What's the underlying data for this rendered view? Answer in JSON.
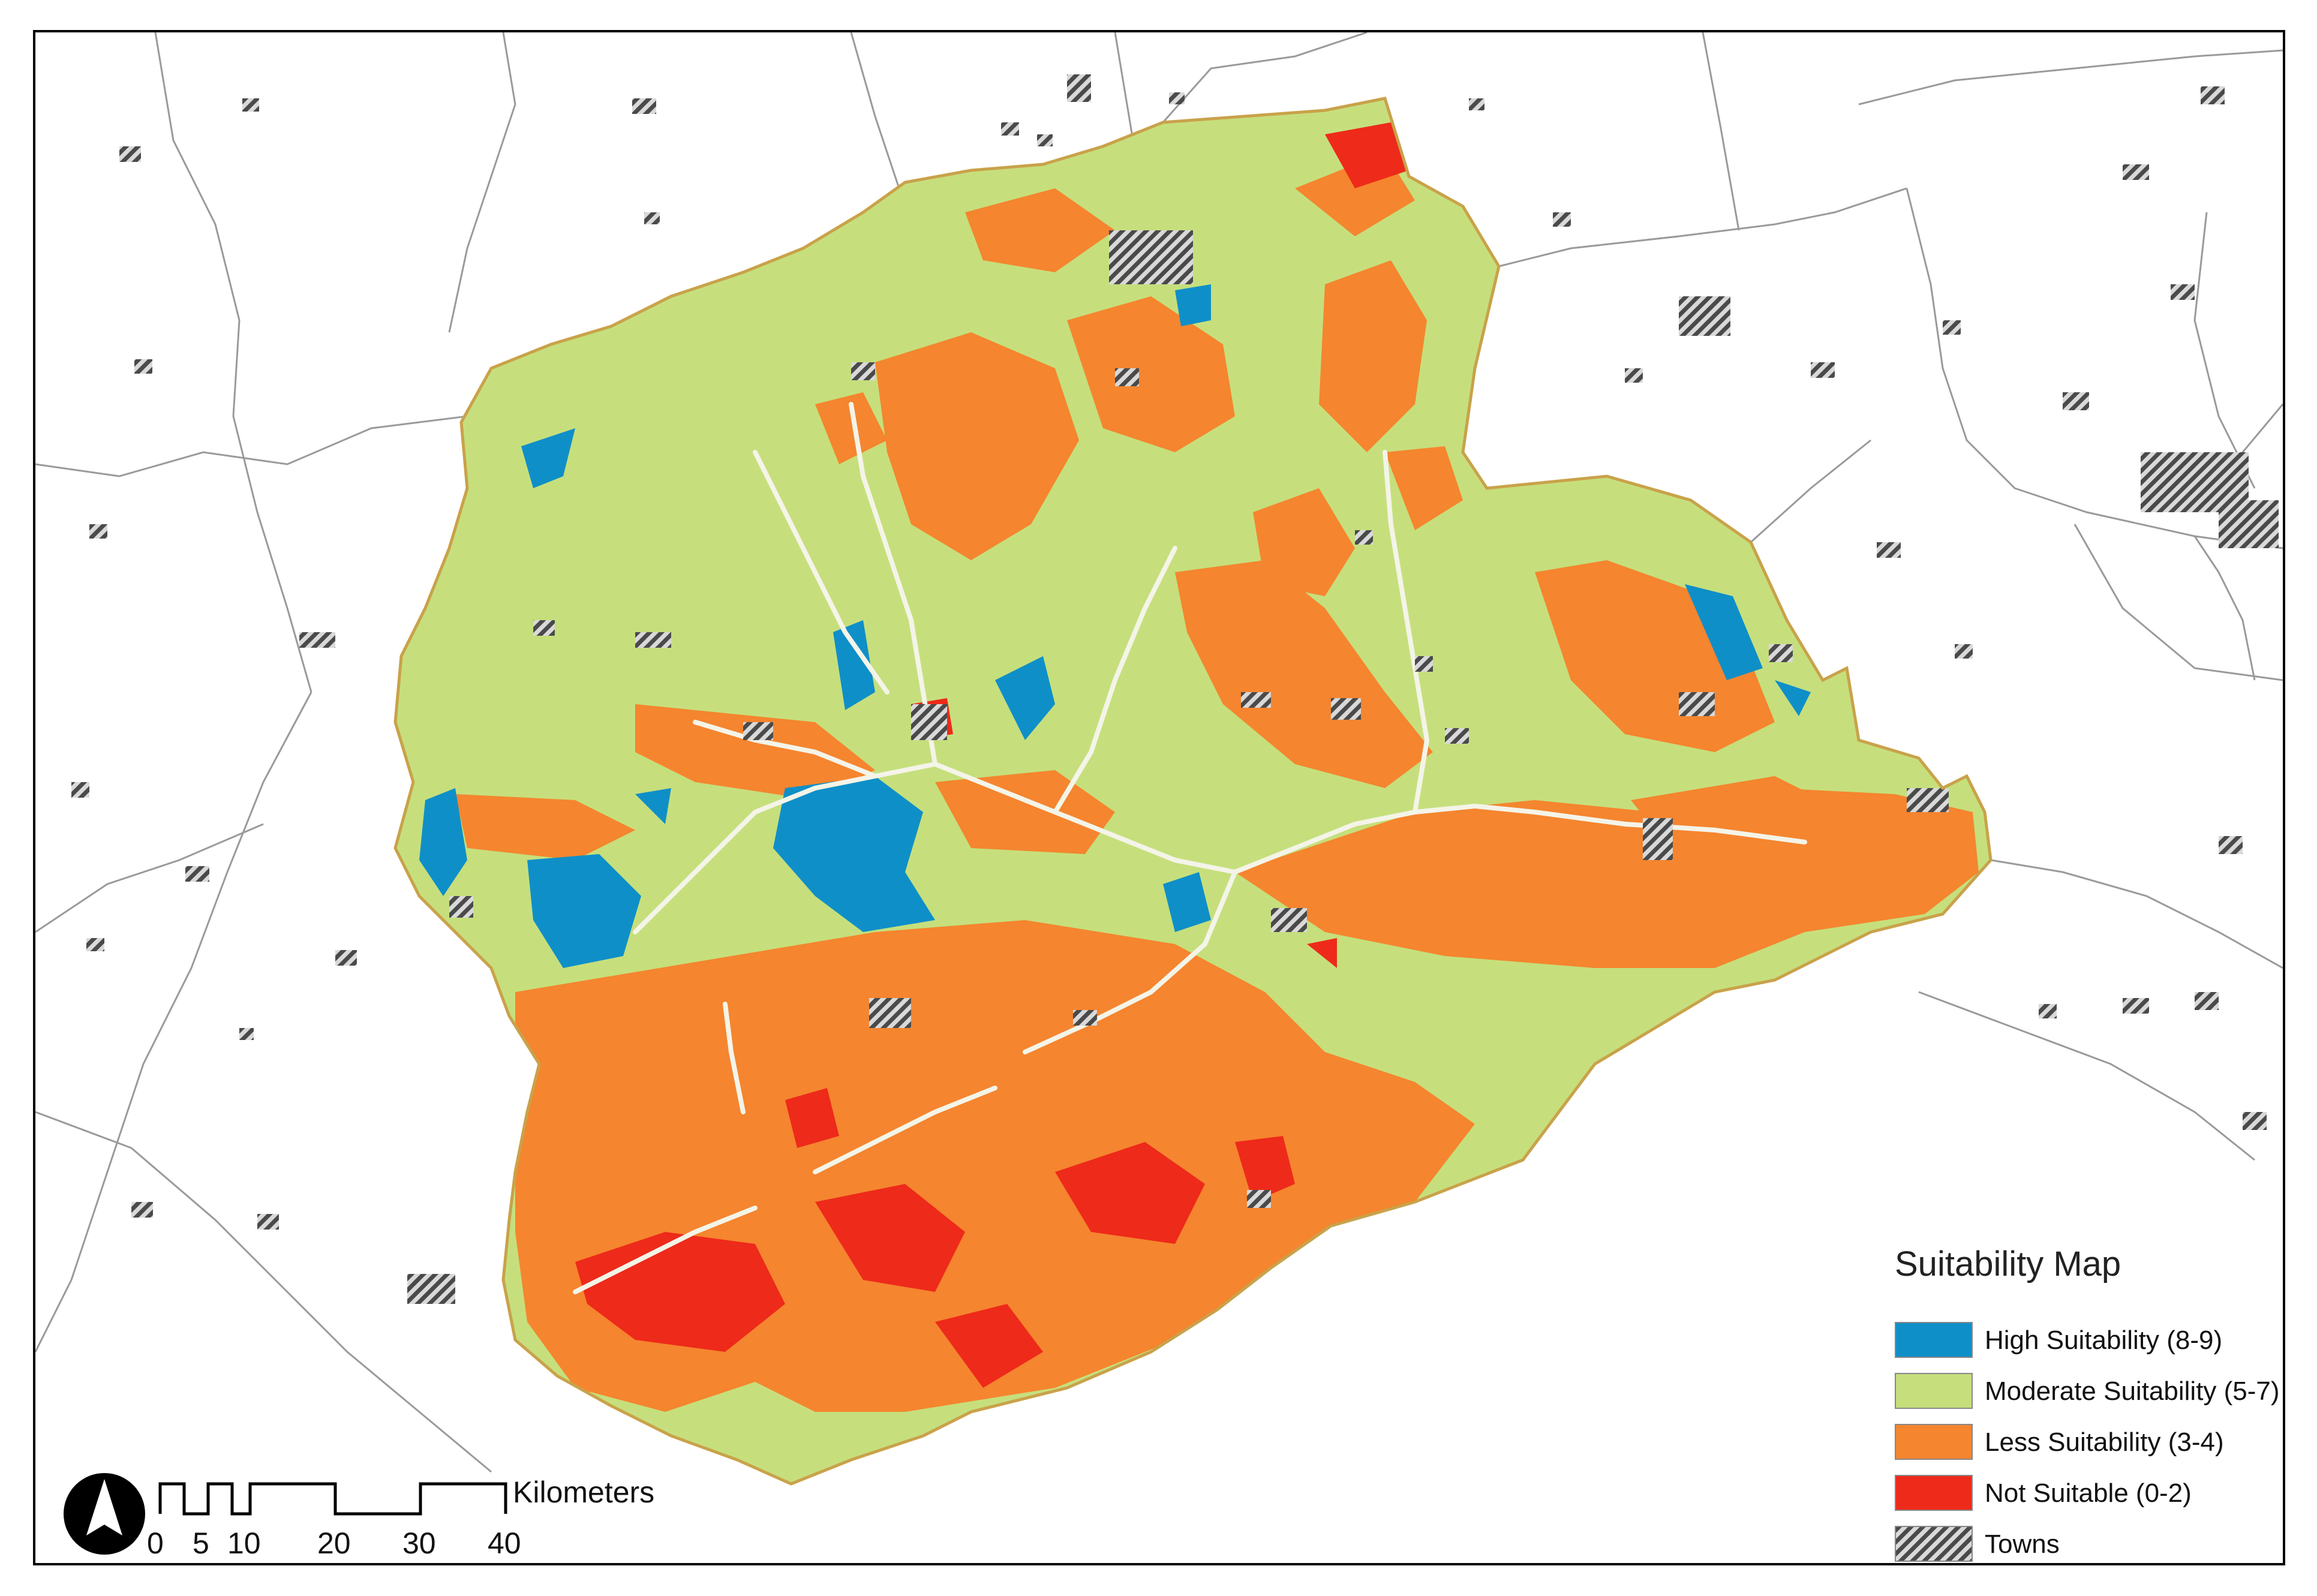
{
  "legend": {
    "title": "Suitability Map",
    "items": [
      {
        "label": "High Suitability (8-9)",
        "color": "#0f8fc8"
      },
      {
        "label": "Moderate Suitability (5-7)",
        "color": "#c6df7c"
      },
      {
        "label": "Less Suitability (3-4)",
        "color": "#f5852f"
      },
      {
        "label": "Not Suitable (0-2)",
        "color": "#ee2a1a"
      },
      {
        "label": "Towns",
        "color": "#555555"
      }
    ]
  },
  "scalebar": {
    "ticks": [
      "0",
      "5",
      "10",
      "20",
      "30",
      "40"
    ],
    "unit": "Kilometers"
  },
  "colors": {
    "boundary": "#c9a24a",
    "river": "#f4f4e8",
    "admin_lines": "#9a9a9a"
  },
  "icons": {
    "north_arrow": "north-arrow-icon"
  }
}
